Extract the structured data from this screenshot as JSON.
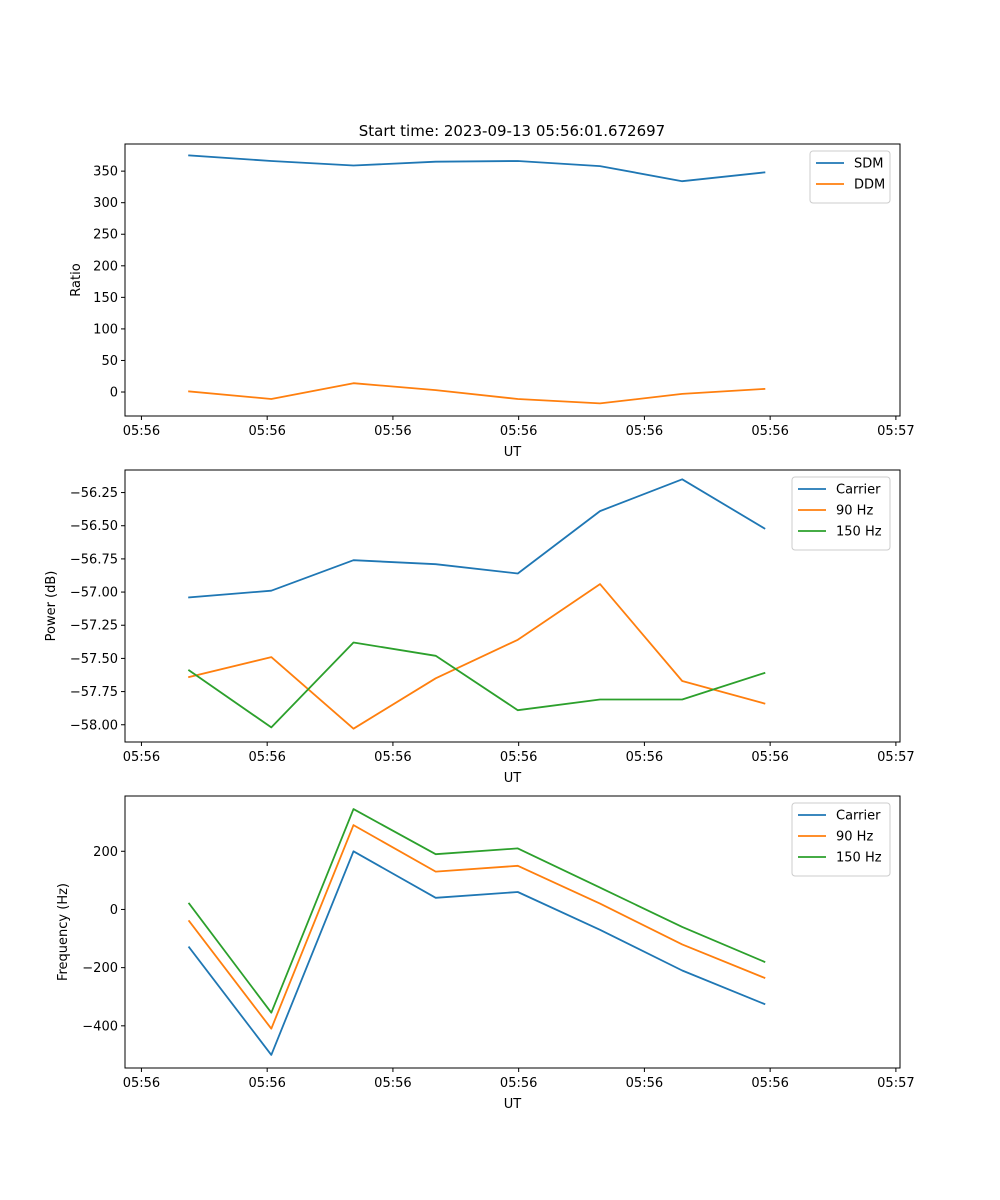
{
  "figure_title": "Start time: 2023-09-13 05:56:01.672697",
  "chart_data": [
    {
      "type": "line",
      "title": "Start time: 2023-09-13 05:56:01.672697",
      "xlabel": "UT",
      "ylabel": "Ratio",
      "x": [
        1,
        2,
        3,
        4,
        5,
        6,
        7,
        8
      ],
      "xlim": [
        0.22,
        9.65
      ],
      "xticks": [
        0.42,
        1.95,
        3.48,
        5.01,
        6.54,
        8.07,
        9.6
      ],
      "xtick_labels": [
        "05:56",
        "05:56",
        "05:56",
        "05:56",
        "05:56",
        "05:56",
        "05:57"
      ],
      "ylim": [
        -38,
        393
      ],
      "yticks": [
        0,
        50,
        100,
        150,
        200,
        250,
        300,
        350
      ],
      "ytick_labels": [
        "0",
        "50",
        "100",
        "150",
        "200",
        "250",
        "300",
        "350"
      ],
      "legend": "upper right",
      "series": [
        {
          "name": "SDM",
          "color": "#1f77b4",
          "values": [
            375,
            366,
            359,
            365,
            366,
            358,
            334,
            348
          ]
        },
        {
          "name": "DDM",
          "color": "#ff7f0e",
          "values": [
            1,
            -11,
            14,
            3,
            -11,
            -18,
            -3,
            5
          ]
        }
      ]
    },
    {
      "type": "line",
      "title": "",
      "xlabel": "UT",
      "ylabel": "Power (dB)",
      "x": [
        1,
        2,
        3,
        4,
        5,
        6,
        7,
        8
      ],
      "xlim": [
        0.22,
        9.65
      ],
      "xticks": [
        0.42,
        1.95,
        3.48,
        5.01,
        6.54,
        8.07,
        9.6
      ],
      "xtick_labels": [
        "05:56",
        "05:56",
        "05:56",
        "05:56",
        "05:56",
        "05:56",
        "05:57"
      ],
      "ylim": [
        -58.13,
        -56.08
      ],
      "yticks": [
        -58.0,
        -57.75,
        -57.5,
        -57.25,
        -57.0,
        -56.75,
        -56.5,
        -56.25
      ],
      "ytick_labels": [
        "−58.00",
        "−57.75",
        "−57.50",
        "−57.25",
        "−57.00",
        "−56.75",
        "−56.50",
        "−56.25"
      ],
      "legend": "upper right",
      "series": [
        {
          "name": "Carrier",
          "color": "#1f77b4",
          "values": [
            -57.04,
            -56.99,
            -56.76,
            -56.79,
            -56.86,
            -56.39,
            -56.15,
            -56.52
          ]
        },
        {
          "name": "90 Hz",
          "color": "#ff7f0e",
          "values": [
            -57.64,
            -57.49,
            -58.03,
            -57.65,
            -57.36,
            -56.94,
            -57.67,
            -57.84
          ]
        },
        {
          "name": "150 Hz",
          "color": "#2ca02c",
          "values": [
            -57.59,
            -58.02,
            -57.38,
            -57.48,
            -57.89,
            -57.81,
            -57.81,
            -57.61
          ]
        }
      ]
    },
    {
      "type": "line",
      "title": "",
      "xlabel": "UT",
      "ylabel": "Frequency (Hz)",
      "x": [
        1,
        2,
        3,
        4,
        5,
        6,
        7,
        8
      ],
      "xlim": [
        0.22,
        9.65
      ],
      "xticks": [
        0.42,
        1.95,
        3.48,
        5.01,
        6.54,
        8.07,
        9.6
      ],
      "xtick_labels": [
        "05:56",
        "05:56",
        "05:56",
        "05:56",
        "05:56",
        "05:56",
        "05:57"
      ],
      "ylim": [
        -545,
        390
      ],
      "yticks": [
        -400,
        -200,
        0,
        200
      ],
      "ytick_labels": [
        "−400",
        "−200",
        "0",
        "200"
      ],
      "legend": "upper right",
      "series": [
        {
          "name": "Carrier",
          "color": "#1f77b4",
          "values": [
            -130,
            -500,
            200,
            40,
            60,
            -70,
            -210,
            -325
          ]
        },
        {
          "name": "90 Hz",
          "color": "#ff7f0e",
          "values": [
            -40,
            -410,
            290,
            130,
            150,
            20,
            -120,
            -235
          ]
        },
        {
          "name": "150 Hz",
          "color": "#2ca02c",
          "values": [
            20,
            -355,
            345,
            190,
            210,
            75,
            -60,
            -180
          ]
        }
      ]
    }
  ]
}
